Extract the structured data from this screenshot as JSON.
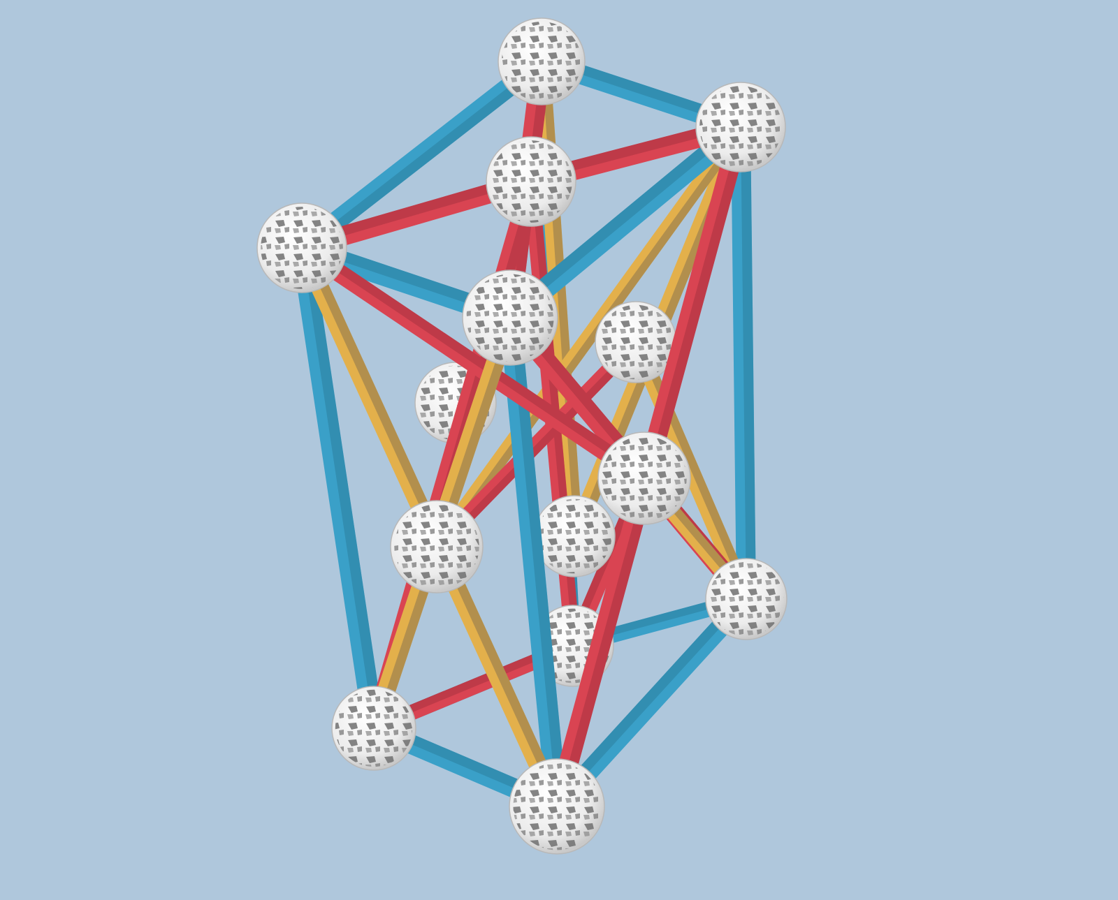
{
  "scene": {
    "description_visible_text": "",
    "colors": {
      "background": "#afc7dc",
      "strut_blue": "#3aa0c8",
      "strut_blue_dark": "#2b7f9f",
      "strut_red": "#d94452",
      "strut_red_dark": "#a8333f",
      "strut_yellow": "#e3b04b",
      "strut_yellow_dark": "#8a7550",
      "ball_fill": "#f4f4f4",
      "ball_hole": "#6f6f6f"
    },
    "objects": {
      "ball": "zometool-connector-ball",
      "blue": "blue-strut",
      "red": "red-strut",
      "yellow": "yellow-strut"
    }
  }
}
